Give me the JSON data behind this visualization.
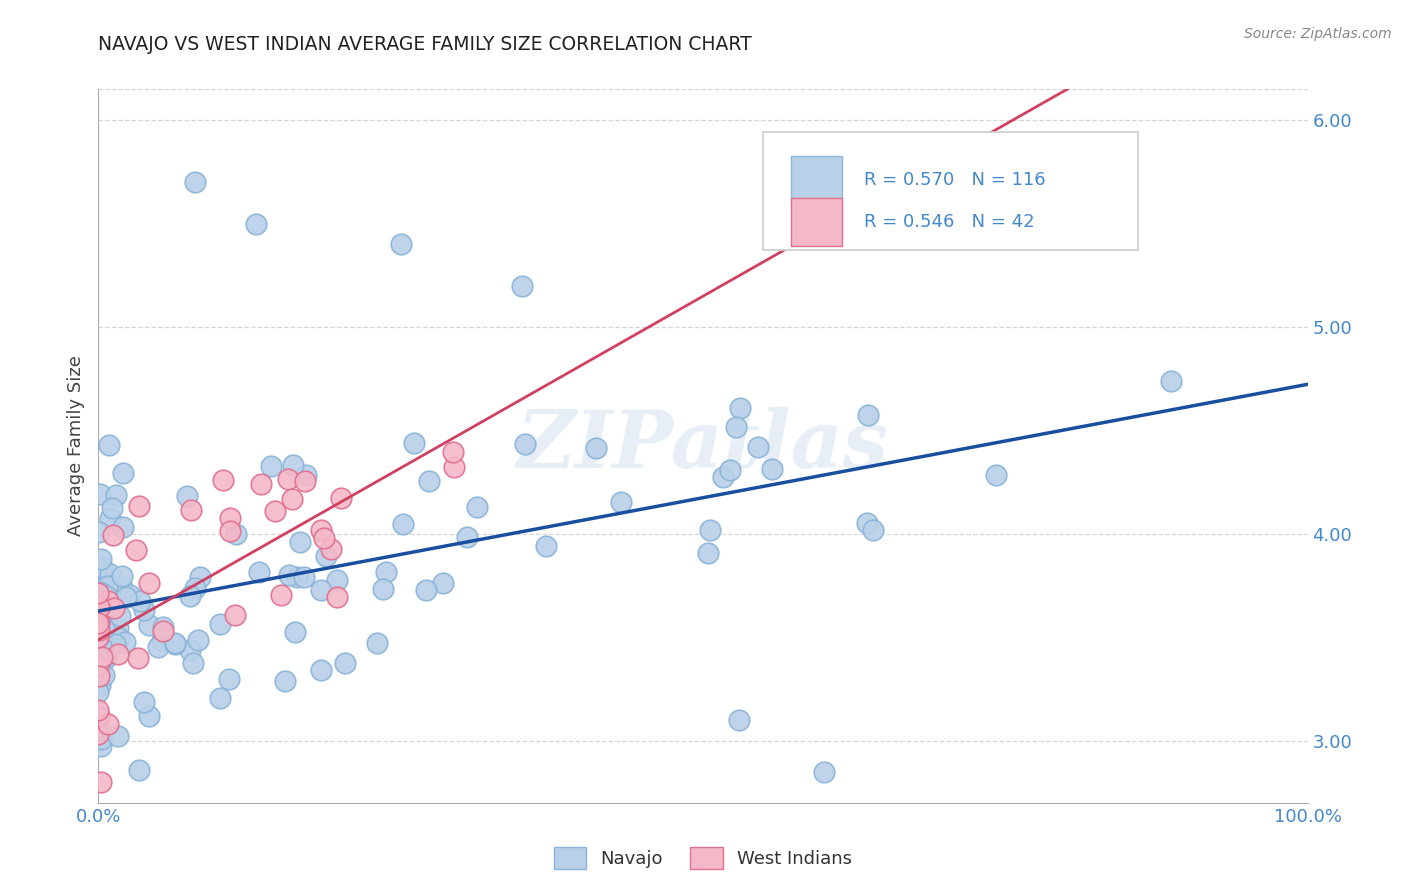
{
  "title": "NAVAJO VS WEST INDIAN AVERAGE FAMILY SIZE CORRELATION CHART",
  "source_text": "Source: ZipAtlas.com",
  "ylabel": "Average Family Size",
  "xlim": [
    0,
    1
  ],
  "ylim": [
    2.7,
    6.15
  ],
  "yticks": [
    3.0,
    4.0,
    5.0,
    6.0
  ],
  "ytick_labels": [
    "3.00",
    "4.00",
    "5.00",
    "6.00"
  ],
  "navajo_color": "#b8d0e8",
  "navajo_edge_color": "#8ab4d8",
  "west_indian_color": "#f4b8c8",
  "west_indian_edge_color": "#e07090",
  "navajo_line_color": "#1a4fa0",
  "west_indian_line_color": "#d04060",
  "grid_color": "#cccccc",
  "background_color": "#ffffff",
  "title_color": "#222222",
  "axis_label_color": "#444444",
  "tick_color": "#4488cc",
  "navajo_R": 0.57,
  "navajo_N": 116,
  "west_indian_R": 0.546,
  "west_indian_N": 42,
  "watermark": "ZIPatlas",
  "navajo_seed": 9999,
  "west_indian_seed": 8888
}
